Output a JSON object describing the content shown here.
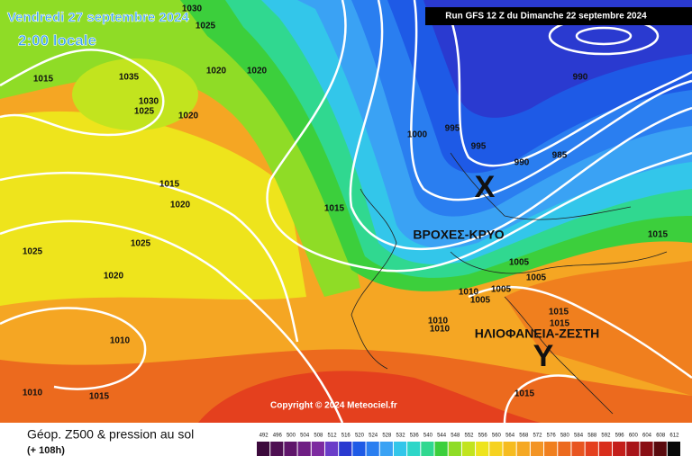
{
  "header": {
    "date": "Vendredi 27 septembre 2024",
    "time": "2:00 locale",
    "run": "Run GFS 12 Z du Dimanche 22 septembre 2024"
  },
  "annotations": {
    "low_marker": "X",
    "low_text": "ΒΡΟΧΕΣ-ΚΡΥΟ",
    "high_marker": "Y",
    "high_text": "ΗΛΙΟΦΑΝΕΙΑ-ΖΕΣΤΗ"
  },
  "isobar_labels": [
    "1015",
    "1030",
    "1025",
    "1035",
    "1020",
    "1020",
    "1030",
    "1025",
    "1020",
    "1015",
    "1020",
    "1015",
    "1025",
    "1025",
    "1020",
    "1010",
    "1010",
    "1015",
    "1000",
    "995",
    "995",
    "990",
    "990",
    "985",
    "1005",
    "1005",
    "1005",
    "1010",
    "1005",
    "1010",
    "1010",
    "1015",
    "1015",
    "1015",
    "1015"
  ],
  "copyright": "Copyright © 2024 Meteociel.fr",
  "footer": {
    "title": "Géop. Z500 & pression au sol",
    "lead": "(+ 108h)"
  },
  "legend": {
    "values": [
      492,
      496,
      500,
      504,
      508,
      512,
      516,
      520,
      524,
      528,
      532,
      536,
      540,
      544,
      548,
      552,
      556,
      560,
      564,
      568,
      572,
      576,
      580,
      584,
      588,
      592,
      596,
      600,
      604,
      608,
      612
    ],
    "colors": [
      "#3c0a3c",
      "#4e0f52",
      "#5f156a",
      "#6f1e84",
      "#7d2aa0",
      "#6a3cc8",
      "#2a3ad0",
      "#1e5ae6",
      "#2a7ef0",
      "#3aa2f4",
      "#33c6ea",
      "#2ed6c8",
      "#30d890",
      "#3ccf3c",
      "#8fdc26",
      "#c2e41e",
      "#eee41c",
      "#f6d220",
      "#f6bc20",
      "#f5a823",
      "#f39424",
      "#f07f1e",
      "#ec6a1e",
      "#e85520",
      "#e4401e",
      "#d92e1c",
      "#c41e1a",
      "#a81418",
      "#8a0e14",
      "#5a0a0e",
      "#080808"
    ]
  }
}
